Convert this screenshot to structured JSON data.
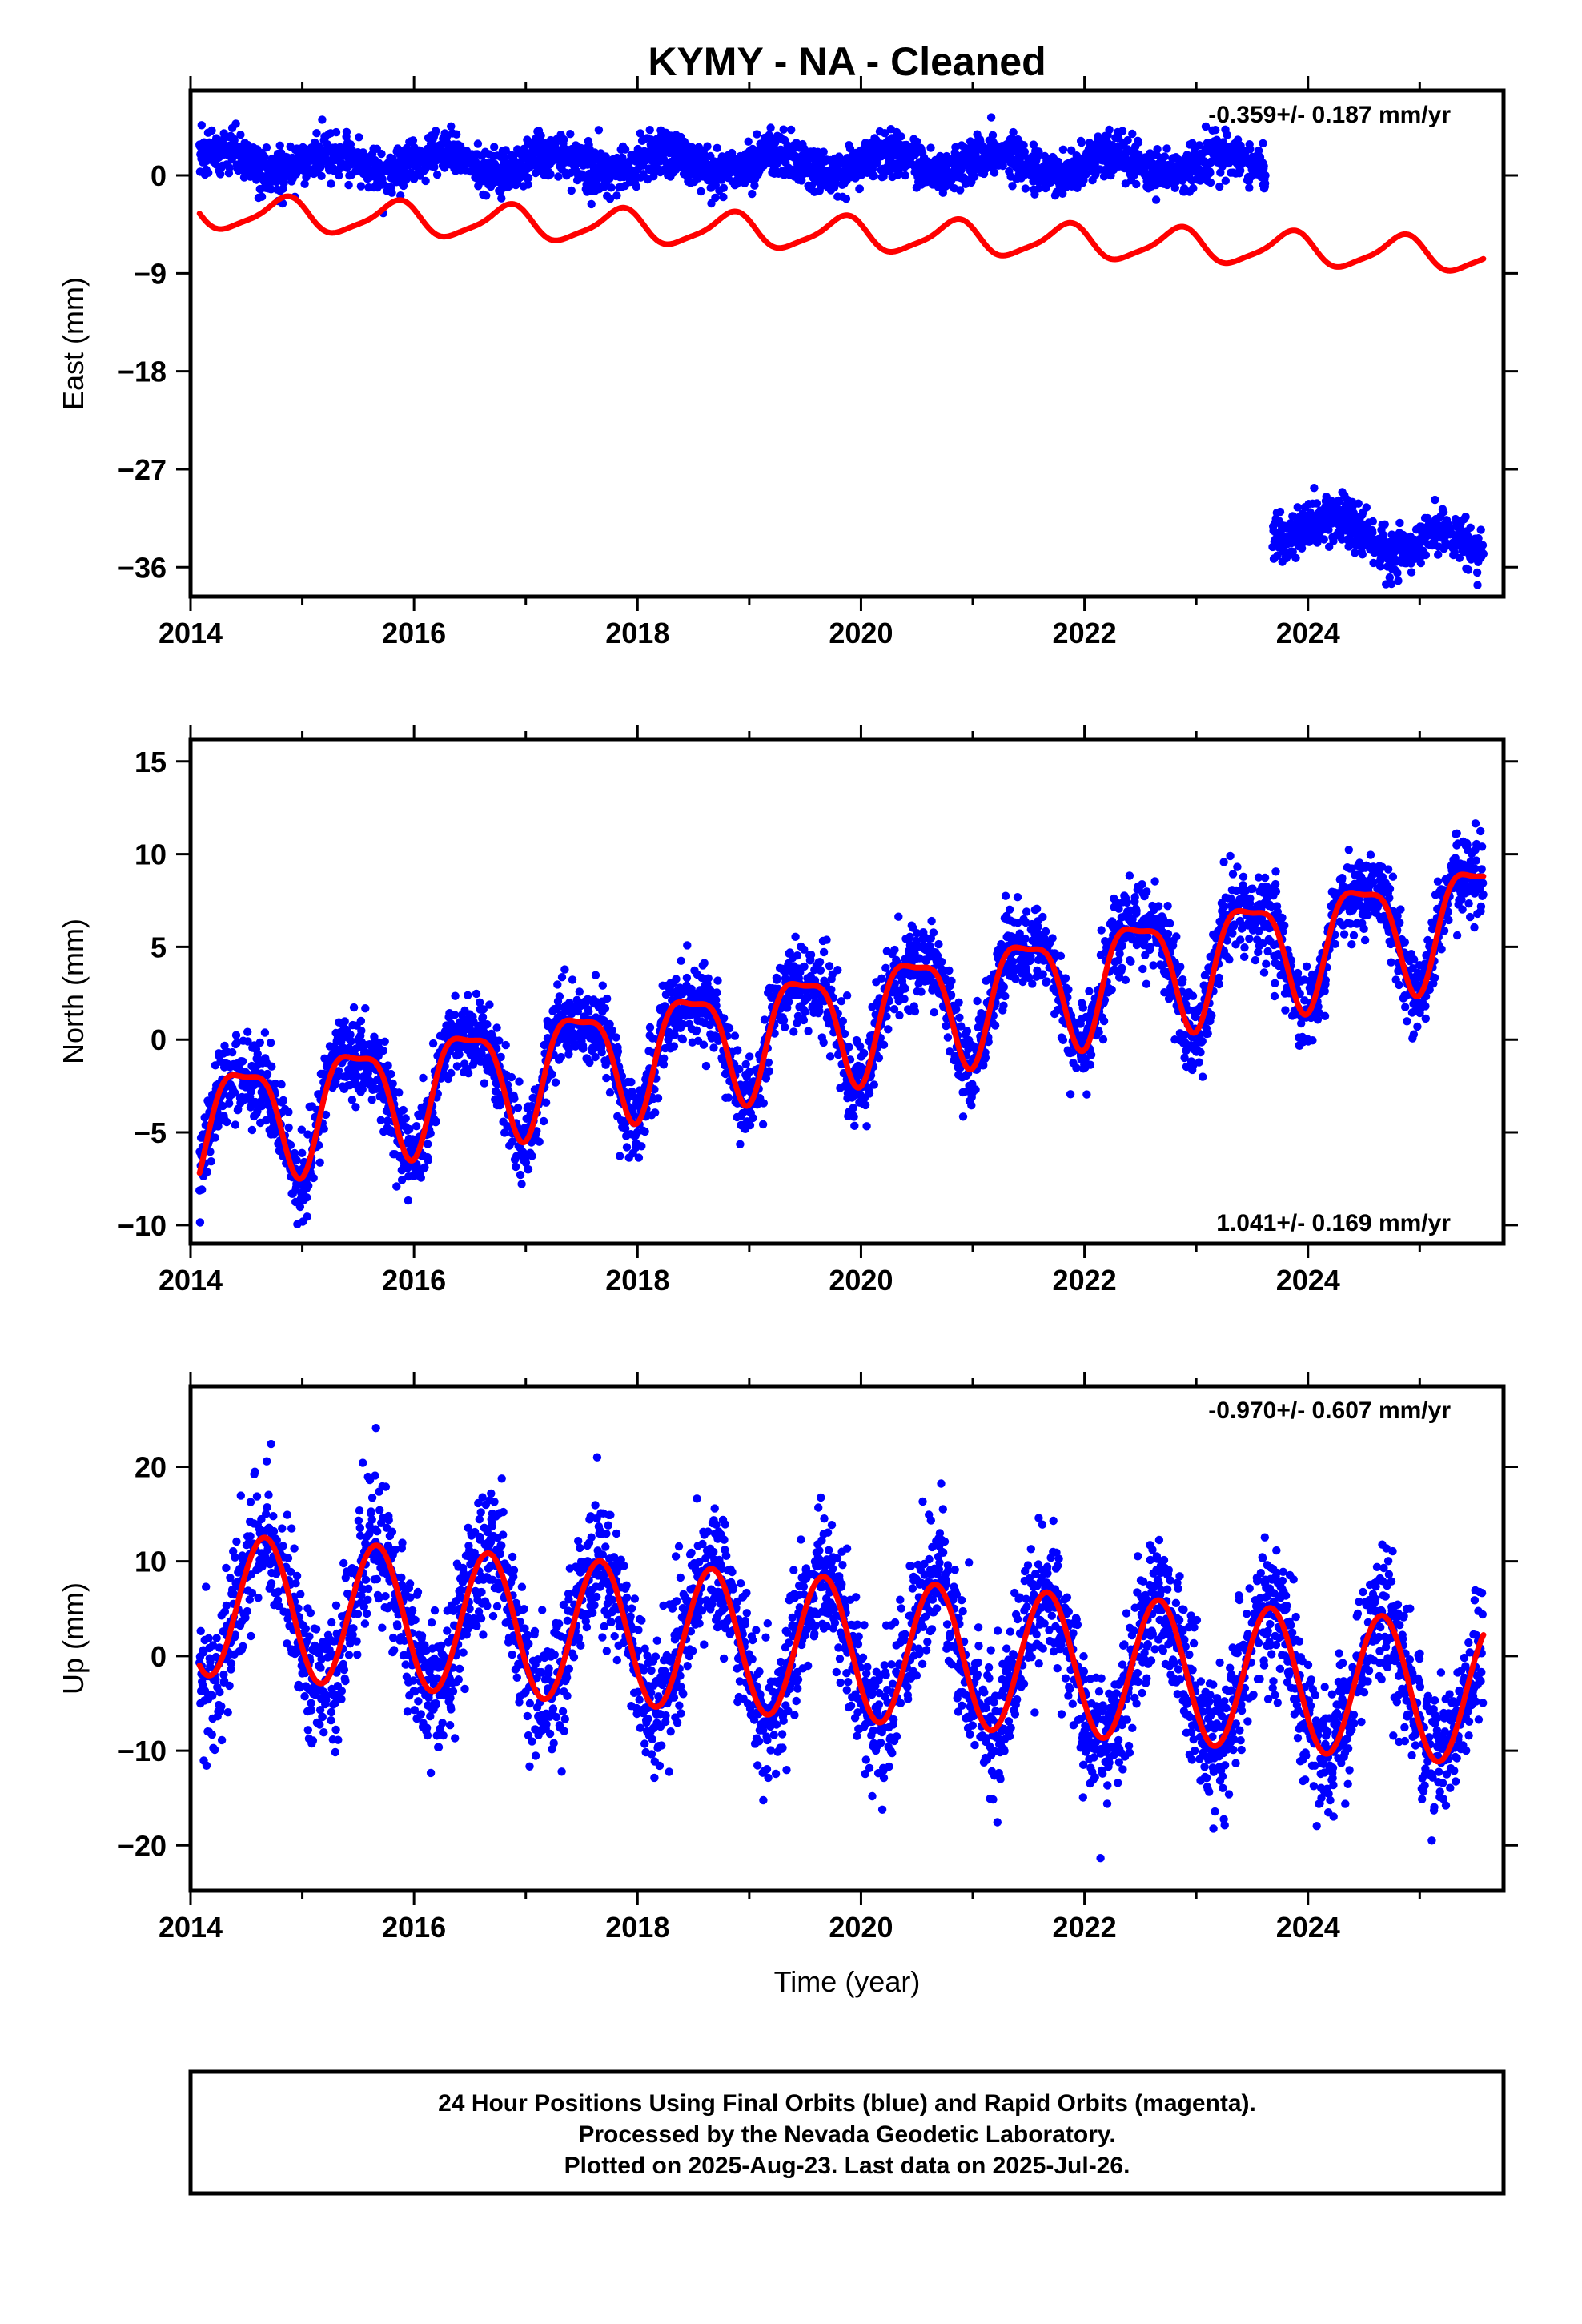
{
  "title": "KYMY  - NA - Cleaned",
  "xlabel": "Time (year)",
  "footer": {
    "line1": "24 Hour Positions Using Final Orbits (blue) and Rapid Orbits (magenta).",
    "line2": "Processed by the Nevada Geodetic Laboratory.",
    "line3": "Plotted on 2025-Aug-23. Last data on 2025-Jul-26."
  },
  "colors": {
    "data": "#0000ff",
    "model": "#ff0000",
    "frame": "#000000",
    "background": "#ffffff"
  },
  "chart_data": [
    {
      "type": "scatter",
      "component": "east",
      "ylabel": "East (mm)",
      "rate_label": "-0.359+/- 0.187 mm/yr",
      "rate_position": "top-right",
      "xlim": [
        2014.0,
        2025.75
      ],
      "ylim": [
        -38.7,
        7.8
      ],
      "xticks": [
        2014,
        2016,
        2018,
        2020,
        2022,
        2024
      ],
      "yticks": [
        0,
        -9,
        -18,
        -27,
        -36
      ],
      "grid": false,
      "series": [
        {
          "role": "observations",
          "color": "#0000ff",
          "segments": [
            {
              "x_start": 2014.08,
              "x_end": 2023.62,
              "offset_start": 1.3,
              "offset_end": 1.0,
              "rate": 0.0,
              "annual_amplitude": 0.9,
              "noise_sd": 1.0
            },
            {
              "x_start": 2023.68,
              "x_end": 2025.57,
              "offset_start": -32.0,
              "offset_end": -34.5,
              "rate": 0.0,
              "annual_amplitude": 1.2,
              "noise_sd": 1.1
            }
          ]
        },
        {
          "role": "model",
          "color": "#ff0000",
          "segments": [
            {
              "x_start": 2014.08,
              "x_end": 2025.57,
              "offset_start": -3.4,
              "offset_end": -7.4,
              "rate": -0.359,
              "annual_amplitude": 1.5,
              "annual_phase": 2.6,
              "semiannual_amplitude": 0.35
            }
          ]
        }
      ]
    },
    {
      "type": "scatter",
      "component": "north",
      "ylabel": "North (mm)",
      "rate_label": "1.041+/- 0.169 mm/yr",
      "rate_position": "bottom-right",
      "xlim": [
        2014.0,
        2025.75
      ],
      "ylim": [
        -11.0,
        16.2
      ],
      "xticks": [
        2014,
        2016,
        2018,
        2020,
        2022,
        2024
      ],
      "yticks": [
        15,
        10,
        5,
        0,
        -5,
        -10
      ],
      "grid": false,
      "series": [
        {
          "role": "observations",
          "color": "#0000ff",
          "segments": [
            {
              "x_start": 2014.08,
              "x_end": 2025.57,
              "offset_start": -4.5,
              "offset_end": 6.8,
              "rate": 1.041,
              "annual_amplitude": 3.0,
              "annual_phase": -1.4,
              "semiannual_amplitude": 0.9,
              "noise_sd": 1.1
            }
          ]
        },
        {
          "role": "model",
          "color": "#ff0000",
          "segments": [
            {
              "x_start": 2014.08,
              "x_end": 2025.57,
              "offset_start": -4.5,
              "offset_end": 6.8,
              "rate": 1.041,
              "annual_amplitude": 3.0,
              "annual_phase": -1.4,
              "semiannual_amplitude": 0.9
            }
          ]
        }
      ]
    },
    {
      "type": "scatter",
      "component": "up",
      "ylabel": "Up (mm)",
      "rate_label": "-0.970+/- 0.607 mm/yr",
      "rate_position": "top-right",
      "xlim": [
        2014.0,
        2025.75
      ],
      "ylim": [
        -24.8,
        28.5
      ],
      "xticks": [
        2014,
        2016,
        2018,
        2020,
        2022,
        2024
      ],
      "yticks": [
        20,
        10,
        0,
        -10,
        -20
      ],
      "grid": false,
      "series": [
        {
          "role": "observations",
          "color": "#0000ff",
          "segments": [
            {
              "x_start": 2014.08,
              "x_end": 2025.57,
              "offset_start": 5.5,
              "offset_end": -4.0,
              "rate": -0.97,
              "annual_amplitude": 7.5,
              "annual_phase": -2.6,
              "noise_sd": 3.6
            }
          ]
        },
        {
          "role": "model",
          "color": "#ff0000",
          "segments": [
            {
              "x_start": 2014.08,
              "x_end": 2025.57,
              "offset_start": 5.5,
              "offset_end": -4.0,
              "rate": -0.97,
              "annual_amplitude": 7.5,
              "annual_phase": -2.6
            }
          ]
        }
      ]
    }
  ]
}
